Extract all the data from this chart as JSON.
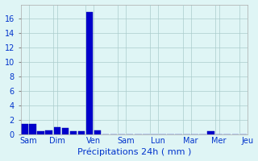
{
  "bar_values": [
    1.5,
    1.4,
    0.5,
    0.6,
    1.0,
    0.9,
    0.5,
    0.4,
    17.0,
    0.6,
    0.0,
    0.0,
    0.0,
    0.0,
    0.0,
    0.0,
    0.0,
    0.0,
    0.0,
    0.0,
    0.0,
    0.0,
    0.0,
    0.4,
    0.0,
    0.0,
    0.0,
    0.0
  ],
  "n_bars": 28,
  "day_labels": [
    "Sam",
    "Dim",
    "Ven",
    "Sam",
    "Lun",
    "Mar",
    "Mer",
    "Jeu"
  ],
  "day_tick_positions": [
    0.5,
    4.0,
    8.5,
    12.5,
    16.5,
    20.5,
    24.0,
    27.5
  ],
  "bar_color": "#0000cc",
  "bar_edge_color": "#0000aa",
  "background_color": "#dff5f5",
  "grid_color": "#aacccc",
  "text_color": "#0033cc",
  "xlabel": "Précipitations 24h ( mm )",
  "ylim": [
    0,
    18
  ],
  "yticks": [
    0,
    2,
    4,
    6,
    8,
    10,
    12,
    14,
    16
  ],
  "xlabel_fontsize": 8,
  "tick_fontsize": 7,
  "bar_width": 0.85
}
